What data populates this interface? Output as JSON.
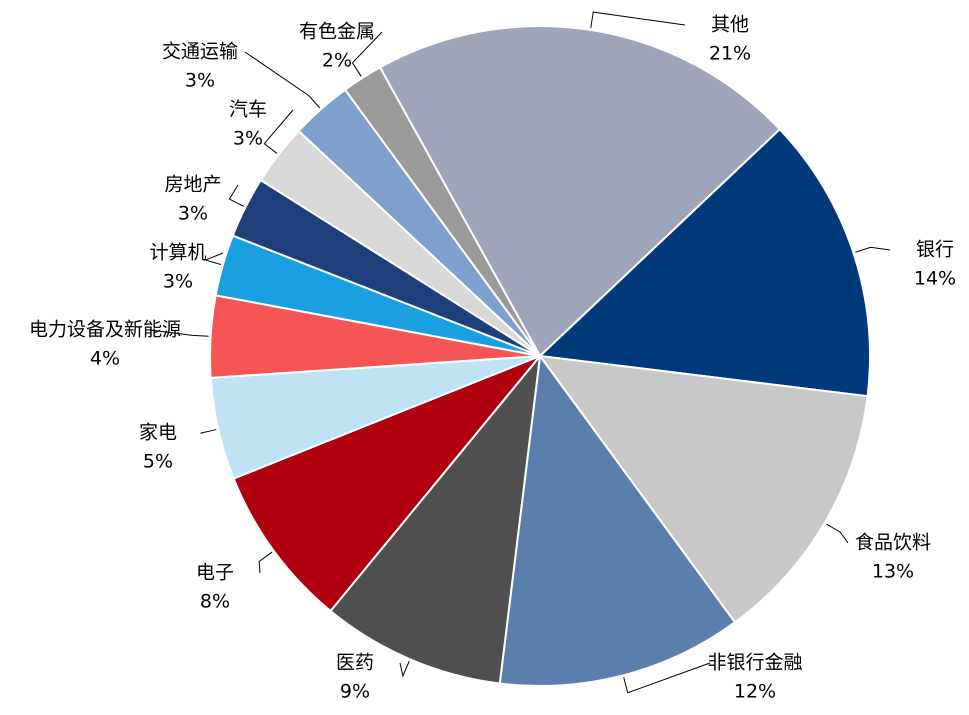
{
  "chart_data": {
    "type": "pie",
    "categories": [
      "其他",
      "银行",
      "食品饮料",
      "非银行金融",
      "医药",
      "电子",
      "家电",
      "电力设备及新能源",
      "计算机",
      "房地产",
      "汽车",
      "交通运输",
      "有色金属"
    ],
    "values": [
      21,
      14,
      13,
      12,
      9,
      8,
      5,
      4,
      3,
      3,
      3,
      3,
      2
    ],
    "value_labels": [
      "21%",
      "14%",
      "13%",
      "12%",
      "9%",
      "8%",
      "5%",
      "4%",
      "3%",
      "3%",
      "3%",
      "3%",
      "2%"
    ],
    "colors": [
      "#a0a4b8",
      "#003a7a",
      "#c8c8c8",
      "#5b7fad",
      "#4f4f4f",
      "#b00010",
      "#bfe3f5",
      "#f55555",
      "#1aa0e0",
      "#1f3f7a",
      "#d8d8d8",
      "#7f9fcc",
      "#9a9a9a"
    ]
  }
}
